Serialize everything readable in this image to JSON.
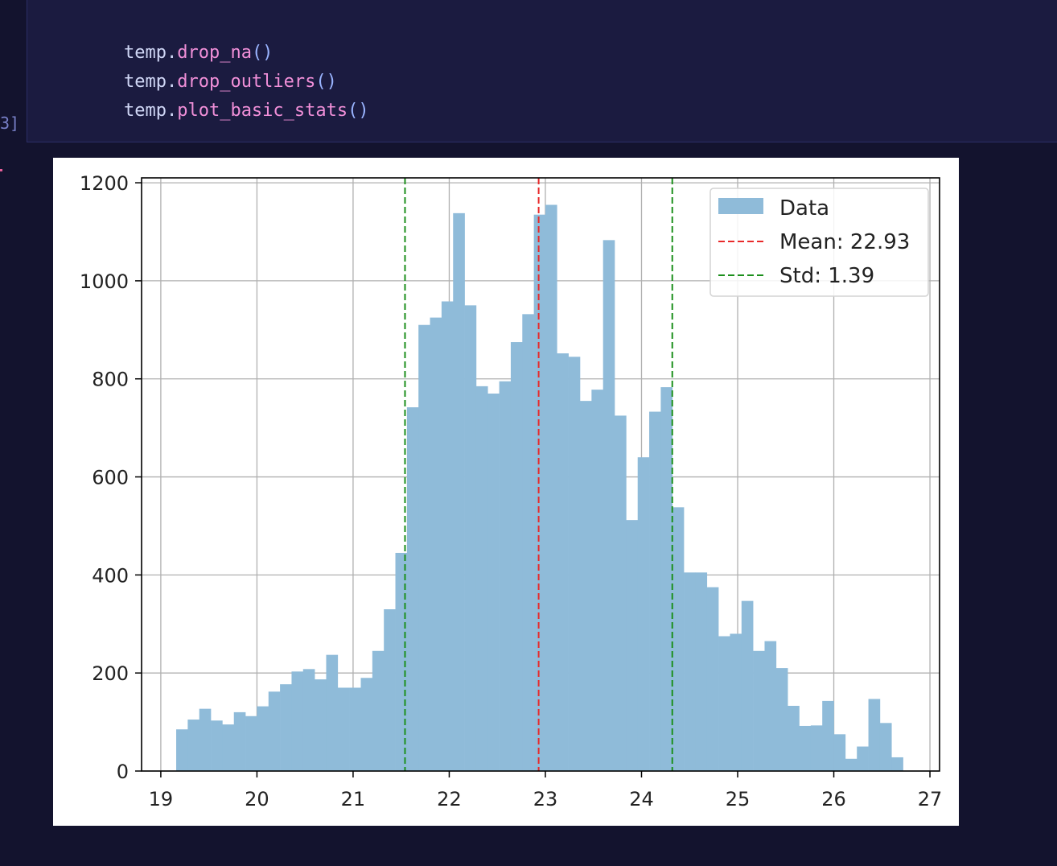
{
  "code": {
    "lines": [
      {
        "obj": "temp",
        "dot": ".",
        "fn": "drop_na",
        "paren": "()"
      },
      {
        "obj": "temp",
        "dot": ".",
        "fn": "drop_outliers",
        "paren": "()"
      },
      {
        "obj": "temp",
        "dot": ".",
        "fn": "plot_basic_stats",
        "paren": "()"
      }
    ],
    "execution_count_fragment": "3]"
  },
  "chart_data": {
    "type": "bar",
    "subtype": "histogram",
    "title": "",
    "xlabel": "",
    "ylabel": "",
    "xlim": [
      18.8,
      27.1
    ],
    "ylim": [
      0,
      1210
    ],
    "xticks": [
      19,
      20,
      21,
      22,
      23,
      24,
      25,
      26,
      27
    ],
    "yticks": [
      0,
      200,
      400,
      600,
      800,
      1000,
      1200
    ],
    "grid": true,
    "bin_start": 19.16,
    "bin_width": 0.12,
    "values": [
      85,
      105,
      127,
      103,
      95,
      120,
      112,
      132,
      162,
      177,
      203,
      208,
      187,
      237,
      170,
      170,
      190,
      245,
      330,
      445,
      742,
      910,
      925,
      958,
      1138,
      950,
      785,
      770,
      795,
      875,
      932,
      1135,
      1155,
      852,
      845,
      755,
      778,
      1083,
      725,
      512,
      640,
      733,
      783,
      538,
      405,
      405,
      375,
      275,
      280,
      347,
      245,
      265,
      210,
      133,
      92,
      93,
      143,
      75,
      25,
      50,
      147,
      98,
      28
    ],
    "series_label": "Data",
    "bar_color": "#8fbbd9",
    "mean": {
      "value": 22.93,
      "label": "Mean: 22.93",
      "color": "#e8292a"
    },
    "std": {
      "value": 1.39,
      "lines_at": [
        21.54,
        24.32
      ],
      "label": "Std: 1.39",
      "color": "#1c8f1c"
    },
    "legend_position": "top-right"
  }
}
